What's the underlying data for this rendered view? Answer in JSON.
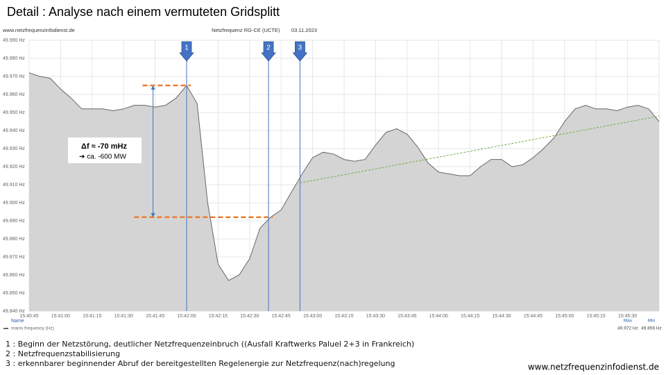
{
  "chart_data": {
    "type": "area",
    "title": "Detail : Analyse nach einem vermuteten Gridsplitt",
    "source": "www.netzfrequenzinfodienst.de",
    "subtitle": "Netzfrequenz RG-CE (UCTE)",
    "date": "03.11.2023",
    "x_label": "Name",
    "x": [
      "15:40:45",
      "15:40:50",
      "15:40:55",
      "15:41:00",
      "15:41:05",
      "15:41:10",
      "15:41:15",
      "15:41:20",
      "15:41:25",
      "15:41:30",
      "15:41:35",
      "15:41:40",
      "15:41:45",
      "15:41:50",
      "15:41:55",
      "15:42:00",
      "15:42:05",
      "15:42:10",
      "15:42:15",
      "15:42:20",
      "15:42:25",
      "15:42:30",
      "15:42:35",
      "15:42:40",
      "15:42:45",
      "15:42:50",
      "15:42:55",
      "15:43:00",
      "15:43:05",
      "15:43:10",
      "15:43:15",
      "15:43:20",
      "15:43:25",
      "15:43:30",
      "15:43:35",
      "15:43:40",
      "15:43:45",
      "15:43:50",
      "15:43:55",
      "15:44:00",
      "15:44:05",
      "15:44:10",
      "15:44:15",
      "15:44:20",
      "15:44:25",
      "15:44:30",
      "15:44:35",
      "15:44:40",
      "15:44:45",
      "15:44:50",
      "15:44:55",
      "15:45:00",
      "15:45:05",
      "15:45:10",
      "15:45:15",
      "15:45:20",
      "15:45:25",
      "15:45:30",
      "15:45:35",
      "15:45:40",
      "15:45:45"
    ],
    "series": [
      {
        "name": "mains frequency (Hz)",
        "color": "#666666",
        "fill": "#d4d4d4",
        "values": [
          49.972,
          49.97,
          49.969,
          49.963,
          49.958,
          49.952,
          49.952,
          49.952,
          49.951,
          49.952,
          49.954,
          49.954,
          49.953,
          49.954,
          49.958,
          49.965,
          49.955,
          49.9,
          49.866,
          49.857,
          49.86,
          49.869,
          49.886,
          49.892,
          49.896,
          49.906,
          49.916,
          49.925,
          49.928,
          49.927,
          49.924,
          49.923,
          49.924,
          49.932,
          49.939,
          49.941,
          49.938,
          49.931,
          49.922,
          49.917,
          49.916,
          49.915,
          49.915,
          49.92,
          49.924,
          49.924,
          49.92,
          49.921,
          49.925,
          49.93,
          49.936,
          49.945,
          49.952,
          49.954,
          49.952,
          49.952,
          49.951,
          49.953,
          49.954,
          49.952,
          49.945
        ]
      }
    ],
    "xlim": [
      "15:40:45",
      "15:45:45"
    ],
    "xticks": [
      "15:40:45",
      "15:41:00",
      "15:41:15",
      "15:41:30",
      "15:41:45",
      "15:42:00",
      "15:42:15",
      "15:42:30",
      "15:42:45",
      "15:43:00",
      "15:43:15",
      "15:43:30",
      "15:43:45",
      "15:44:00",
      "15:44:15",
      "15:44:30",
      "15:44:45",
      "15:45:00",
      "15:45:15",
      "15:45:30"
    ],
    "ylim": [
      49.84,
      49.99
    ],
    "yticks": [
      {
        "value": 49.84,
        "label": "49.840 Hz"
      },
      {
        "value": 49.85,
        "label": "49.850 Hz"
      },
      {
        "value": 49.86,
        "label": "49.860 Hz"
      },
      {
        "value": 49.87,
        "label": "49.870 Hz"
      },
      {
        "value": 49.88,
        "label": "49.880 Hz"
      },
      {
        "value": 49.89,
        "label": "49.890 Hz"
      },
      {
        "value": 49.9,
        "label": "49.900 Hz"
      },
      {
        "value": 49.91,
        "label": "49.910 Hz"
      },
      {
        "value": 49.92,
        "label": "49.920 Hz"
      },
      {
        "value": 49.93,
        "label": "49.930 Hz"
      },
      {
        "value": 49.94,
        "label": "49.940 Hz"
      },
      {
        "value": 49.95,
        "label": "49.950 Hz"
      },
      {
        "value": 49.96,
        "label": "49.960 Hz"
      },
      {
        "value": 49.97,
        "label": "49.970 Hz"
      },
      {
        "value": 49.98,
        "label": "49.980 Hz"
      },
      {
        "value": 49.99,
        "label": "49.990 Hz"
      }
    ],
    "grid": true,
    "markers": [
      {
        "label": "1",
        "x": "15:42:00",
        "color": "#4472c4"
      },
      {
        "label": "2",
        "x": "15:42:39",
        "color": "#4472c4"
      },
      {
        "label": "3",
        "x": "15:42:54",
        "color": "#4472c4"
      }
    ],
    "reference_lines": [
      {
        "y": 49.965,
        "x": [
          "15:41:39",
          "15:42:02"
        ],
        "color": "#ed7d31"
      },
      {
        "y": 49.892,
        "x": [
          "15:41:35",
          "15:42:41"
        ],
        "color": "#ed7d31"
      }
    ],
    "delta_arrow": {
      "x": "15:41:44",
      "y": [
        49.965,
        49.892
      ],
      "color": "#4472c4"
    },
    "trend_line": {
      "x": [
        "15:42:54",
        "15:45:45"
      ],
      "y": [
        49.911,
        49.948
      ],
      "color": "#70ad47"
    },
    "annotation": [
      "Δf ≈ -70 mHz",
      "➔   ca. -600 MW"
    ],
    "stats": {
      "names": [
        "Max",
        "Min"
      ],
      "value_labels": [
        "49.972 Hz",
        "49.856 Hz"
      ]
    },
    "notes": [
      "1 : Beginn der Netzstörung,  deutlicher Netzfrequenzeinbruch  ((Ausfall Kraftwerks Paluel 2+3 in Frankreich)",
      "2 : Netzfrequenzstabilisierung",
      "3 : erkennbarer beginnender Abruf der bereitgestellten Regelenergie zur Netzfrequenz(nach)regelung"
    ],
    "footer": "www.netzfrequenzinfodienst.de"
  }
}
